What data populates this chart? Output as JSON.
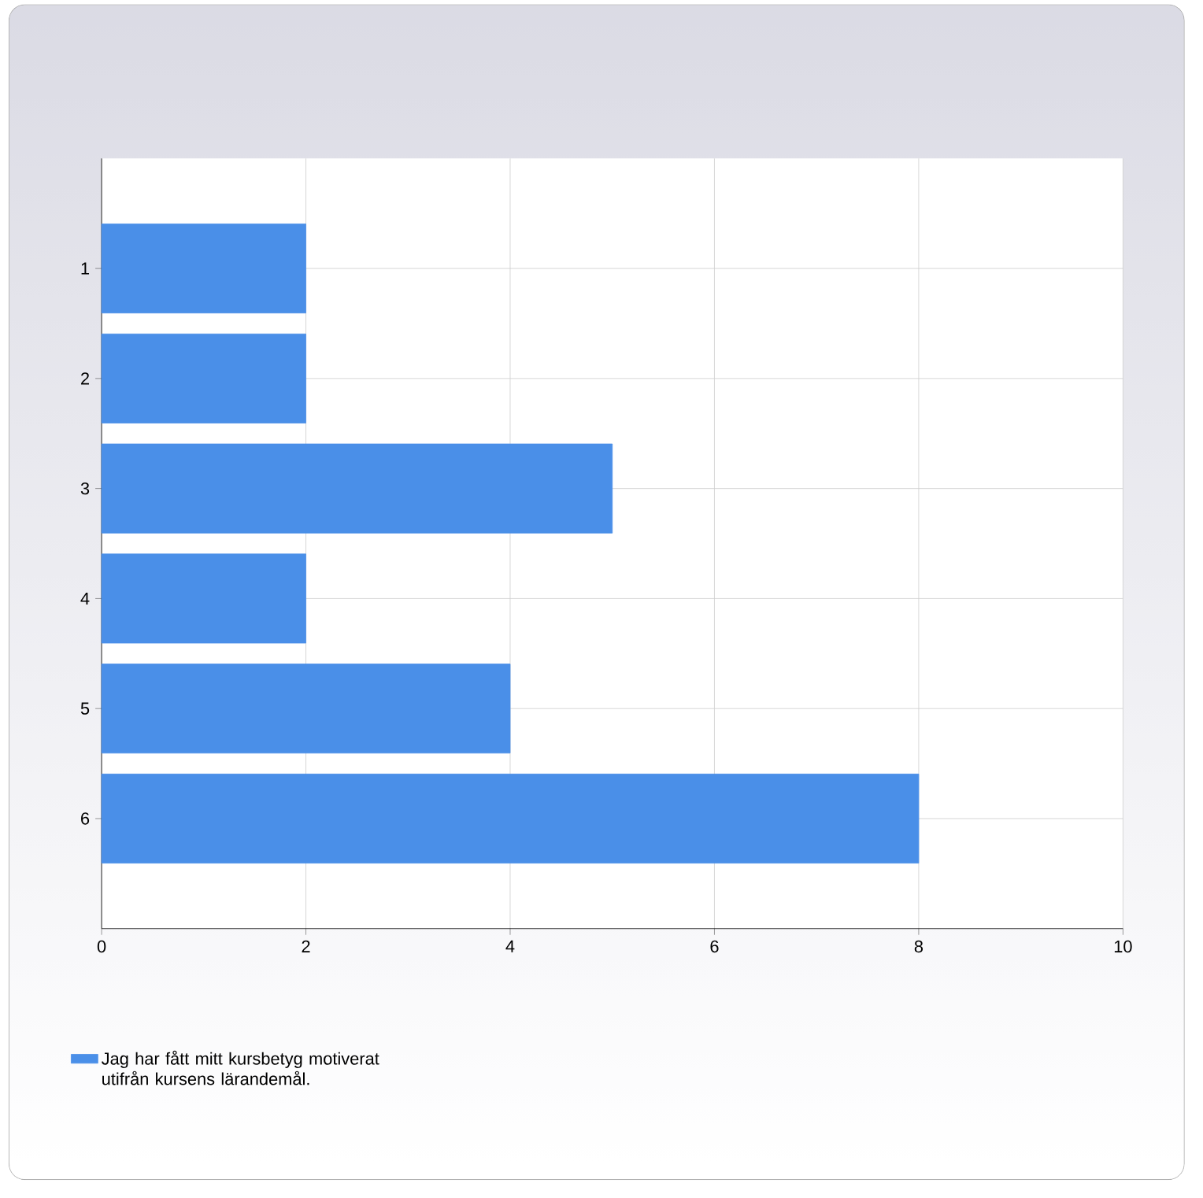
{
  "chart_data": {
    "type": "bar",
    "orientation": "horizontal",
    "categories": [
      "1",
      "2",
      "3",
      "4",
      "5",
      "6"
    ],
    "series": [
      {
        "name": "Jag har fått mitt kursbetyg motiverat utifrån kursens lärandemål.",
        "color": "#4a8fe8",
        "values": [
          2,
          2,
          5,
          2,
          4,
          8
        ]
      }
    ],
    "xlim": [
      0,
      10
    ],
    "xticks": [
      0,
      2,
      4,
      6,
      8,
      10
    ],
    "grid": true,
    "legend": "bottom left"
  }
}
